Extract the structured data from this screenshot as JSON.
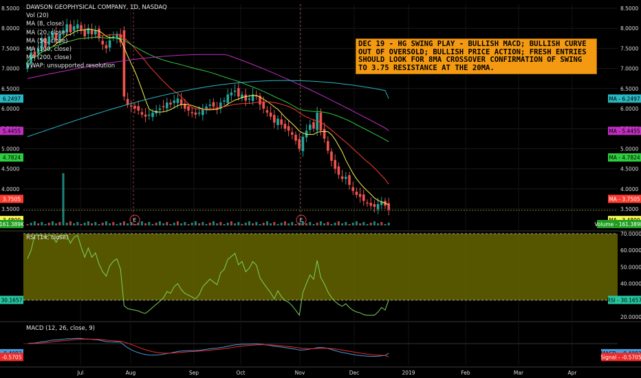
{
  "legend": {
    "title": "DAWSON GEOPHYSICAL COMPANY, 1D, NASDAQ",
    "lines": [
      "Vol (20)",
      "MA (8, close)",
      "MA (20, close)",
      "MA (50, close)",
      "MA (100, close)",
      "MA (200, close)",
      "VWAP: unsupported resolution"
    ]
  },
  "note": "DEC 19 - HG SWING PLAY - BULLISH MACD; BULLISH CURVE OUT OF OVERSOLD; BULLISH PRICE ACTION; FRESH ENTRIES SHOULD LOOK FOR 8MA CROSSOVER CONFIRMATION OF SWING TO 3.75 RESISTANCE AT THE 20MA.",
  "earnings_marker": "E",
  "rsi_legend": "RSI (14, close)",
  "macd_legend": "MACD (12, 26, close, 9)",
  "colors": {
    "up": "#26a69a",
    "down": "#ef5350",
    "ma8": "#f7f754",
    "ma20": "#ff3b30",
    "ma50": "#2ecc40",
    "ma100": "#c22ec2",
    "ma200": "#2ab7c0",
    "rsi": "#7dd35a",
    "rsi_band": "#6b6b00",
    "macd": "#4a9ad8",
    "signal": "#ee2a2a",
    "note_bg": "#f39a12"
  },
  "chart_data": [
    {
      "type": "candlestick",
      "title": "DAWSON GEOPHYSICAL COMPANY, 1D, NASDAQ",
      "ylim": [
        3.0,
        8.5
      ],
      "y_ticks": [
        "8.5000",
        "8.0000",
        "7.5000",
        "7.0000",
        "6.5000",
        "6.0000",
        "5.5000",
        "5.0000",
        "4.5000",
        "4.0000",
        "3.5000"
      ],
      "x_ticks": [
        "Jul",
        "Aug",
        "Sep",
        "Oct",
        "Nov",
        "Dec",
        "2019",
        "Feb",
        "Mar",
        "Apr"
      ],
      "close": [
        7.15,
        7.4,
        7.3,
        7.5,
        7.75,
        7.55,
        7.8,
        7.9,
        7.7,
        7.85,
        7.95,
        8.1,
        7.9,
        8.05,
        8.1,
        7.95,
        7.8,
        8.0,
        7.85,
        7.95,
        7.75,
        7.6,
        7.5,
        7.7,
        7.8,
        7.85,
        7.65,
        6.3,
        6.1,
        6.05,
        6.0,
        5.95,
        5.85,
        5.8,
        5.85,
        5.9,
        5.95,
        6.0,
        6.05,
        6.15,
        6.1,
        6.2,
        6.25,
        6.1,
        6.0,
        5.95,
        5.9,
        5.85,
        5.9,
        6.0,
        6.05,
        6.1,
        6.05,
        6.0,
        6.15,
        6.2,
        6.35,
        6.4,
        6.45,
        6.3,
        6.35,
        6.2,
        6.25,
        6.35,
        6.3,
        6.1,
        6.0,
        5.9,
        5.8,
        5.65,
        5.75,
        5.6,
        5.5,
        5.45,
        5.35,
        5.2,
        5.0,
        5.3,
        5.45,
        5.6,
        5.5,
        5.9,
        5.45,
        5.25,
        4.95,
        4.7,
        4.5,
        4.35,
        4.25,
        4.3,
        4.1,
        3.95,
        3.85,
        3.8,
        3.7,
        3.65,
        3.58,
        3.55,
        3.62,
        3.68,
        3.58,
        3.48
      ],
      "series": [
        {
          "name": "MA (8, close)",
          "last": 3.48,
          "label": "MA - 3.4800"
        },
        {
          "name": "MA (20, close)",
          "last": 3.7505,
          "label": "MA - 3.7505"
        },
        {
          "name": "MA (50, close)",
          "last": 4.7824,
          "label": "MA - 4.7824"
        },
        {
          "name": "MA (100, close)",
          "last": 5.4455,
          "label": "MA - 5.4455"
        },
        {
          "name": "MA (200, close)",
          "last": 6.2497,
          "label": "MA - 6.2497"
        }
      ],
      "volume_label": "Volume - 161.389K",
      "volume_last": "161.389K",
      "price_tags_left": [
        "6.2497",
        "5.4455",
        "4.7824",
        "3.7505",
        "3.4800",
        "161.389K"
      ]
    },
    {
      "type": "line",
      "title": "RSI (14, close)",
      "ylim": [
        20,
        70
      ],
      "y_ticks": [
        "70.0000",
        "60.0000",
        "50.0000",
        "40.0000",
        "30.0000",
        "20.0000"
      ],
      "last": 30.1657,
      "label": "RSI - 30.1657",
      "left_tag": "30.1657"
    },
    {
      "type": "line",
      "title": "MACD (12, 26, close, 9)",
      "series": [
        {
          "name": "MACD",
          "last": -0.4083,
          "label": "MACD - -0.4083"
        },
        {
          "name": "Signal",
          "last": -0.5705,
          "label": "Signal - -0.5705"
        }
      ],
      "left_tags": [
        "-0.4083",
        "-0.5705"
      ]
    }
  ]
}
